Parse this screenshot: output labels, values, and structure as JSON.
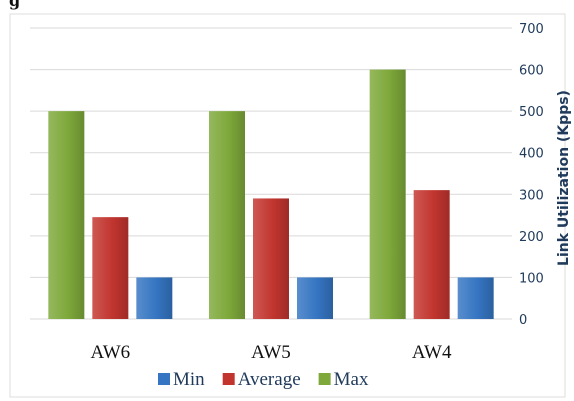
{
  "chart_data": {
    "type": "bar",
    "header_fragment": "g",
    "categories": [
      "AW6",
      "AW5",
      "AW4"
    ],
    "series": [
      {
        "name": "Max",
        "values": [
          500,
          500,
          600
        ],
        "color": "#7ea83a"
      },
      {
        "name": "Average",
        "values": [
          245,
          290,
          310
        ],
        "color": "#c2352f"
      },
      {
        "name": "Min",
        "values": [
          100,
          100,
          100
        ],
        "color": "#3575c2"
      }
    ],
    "legend_order": [
      "Min",
      "Average",
      "Max"
    ],
    "ylabel": "Link Utilization (Kpps)",
    "ylim": [
      0,
      700
    ],
    "yticks": [
      0,
      100,
      200,
      300,
      400,
      500,
      600,
      700
    ],
    "y_axis_side": "right",
    "grid": true,
    "legend_position": "bottom"
  }
}
